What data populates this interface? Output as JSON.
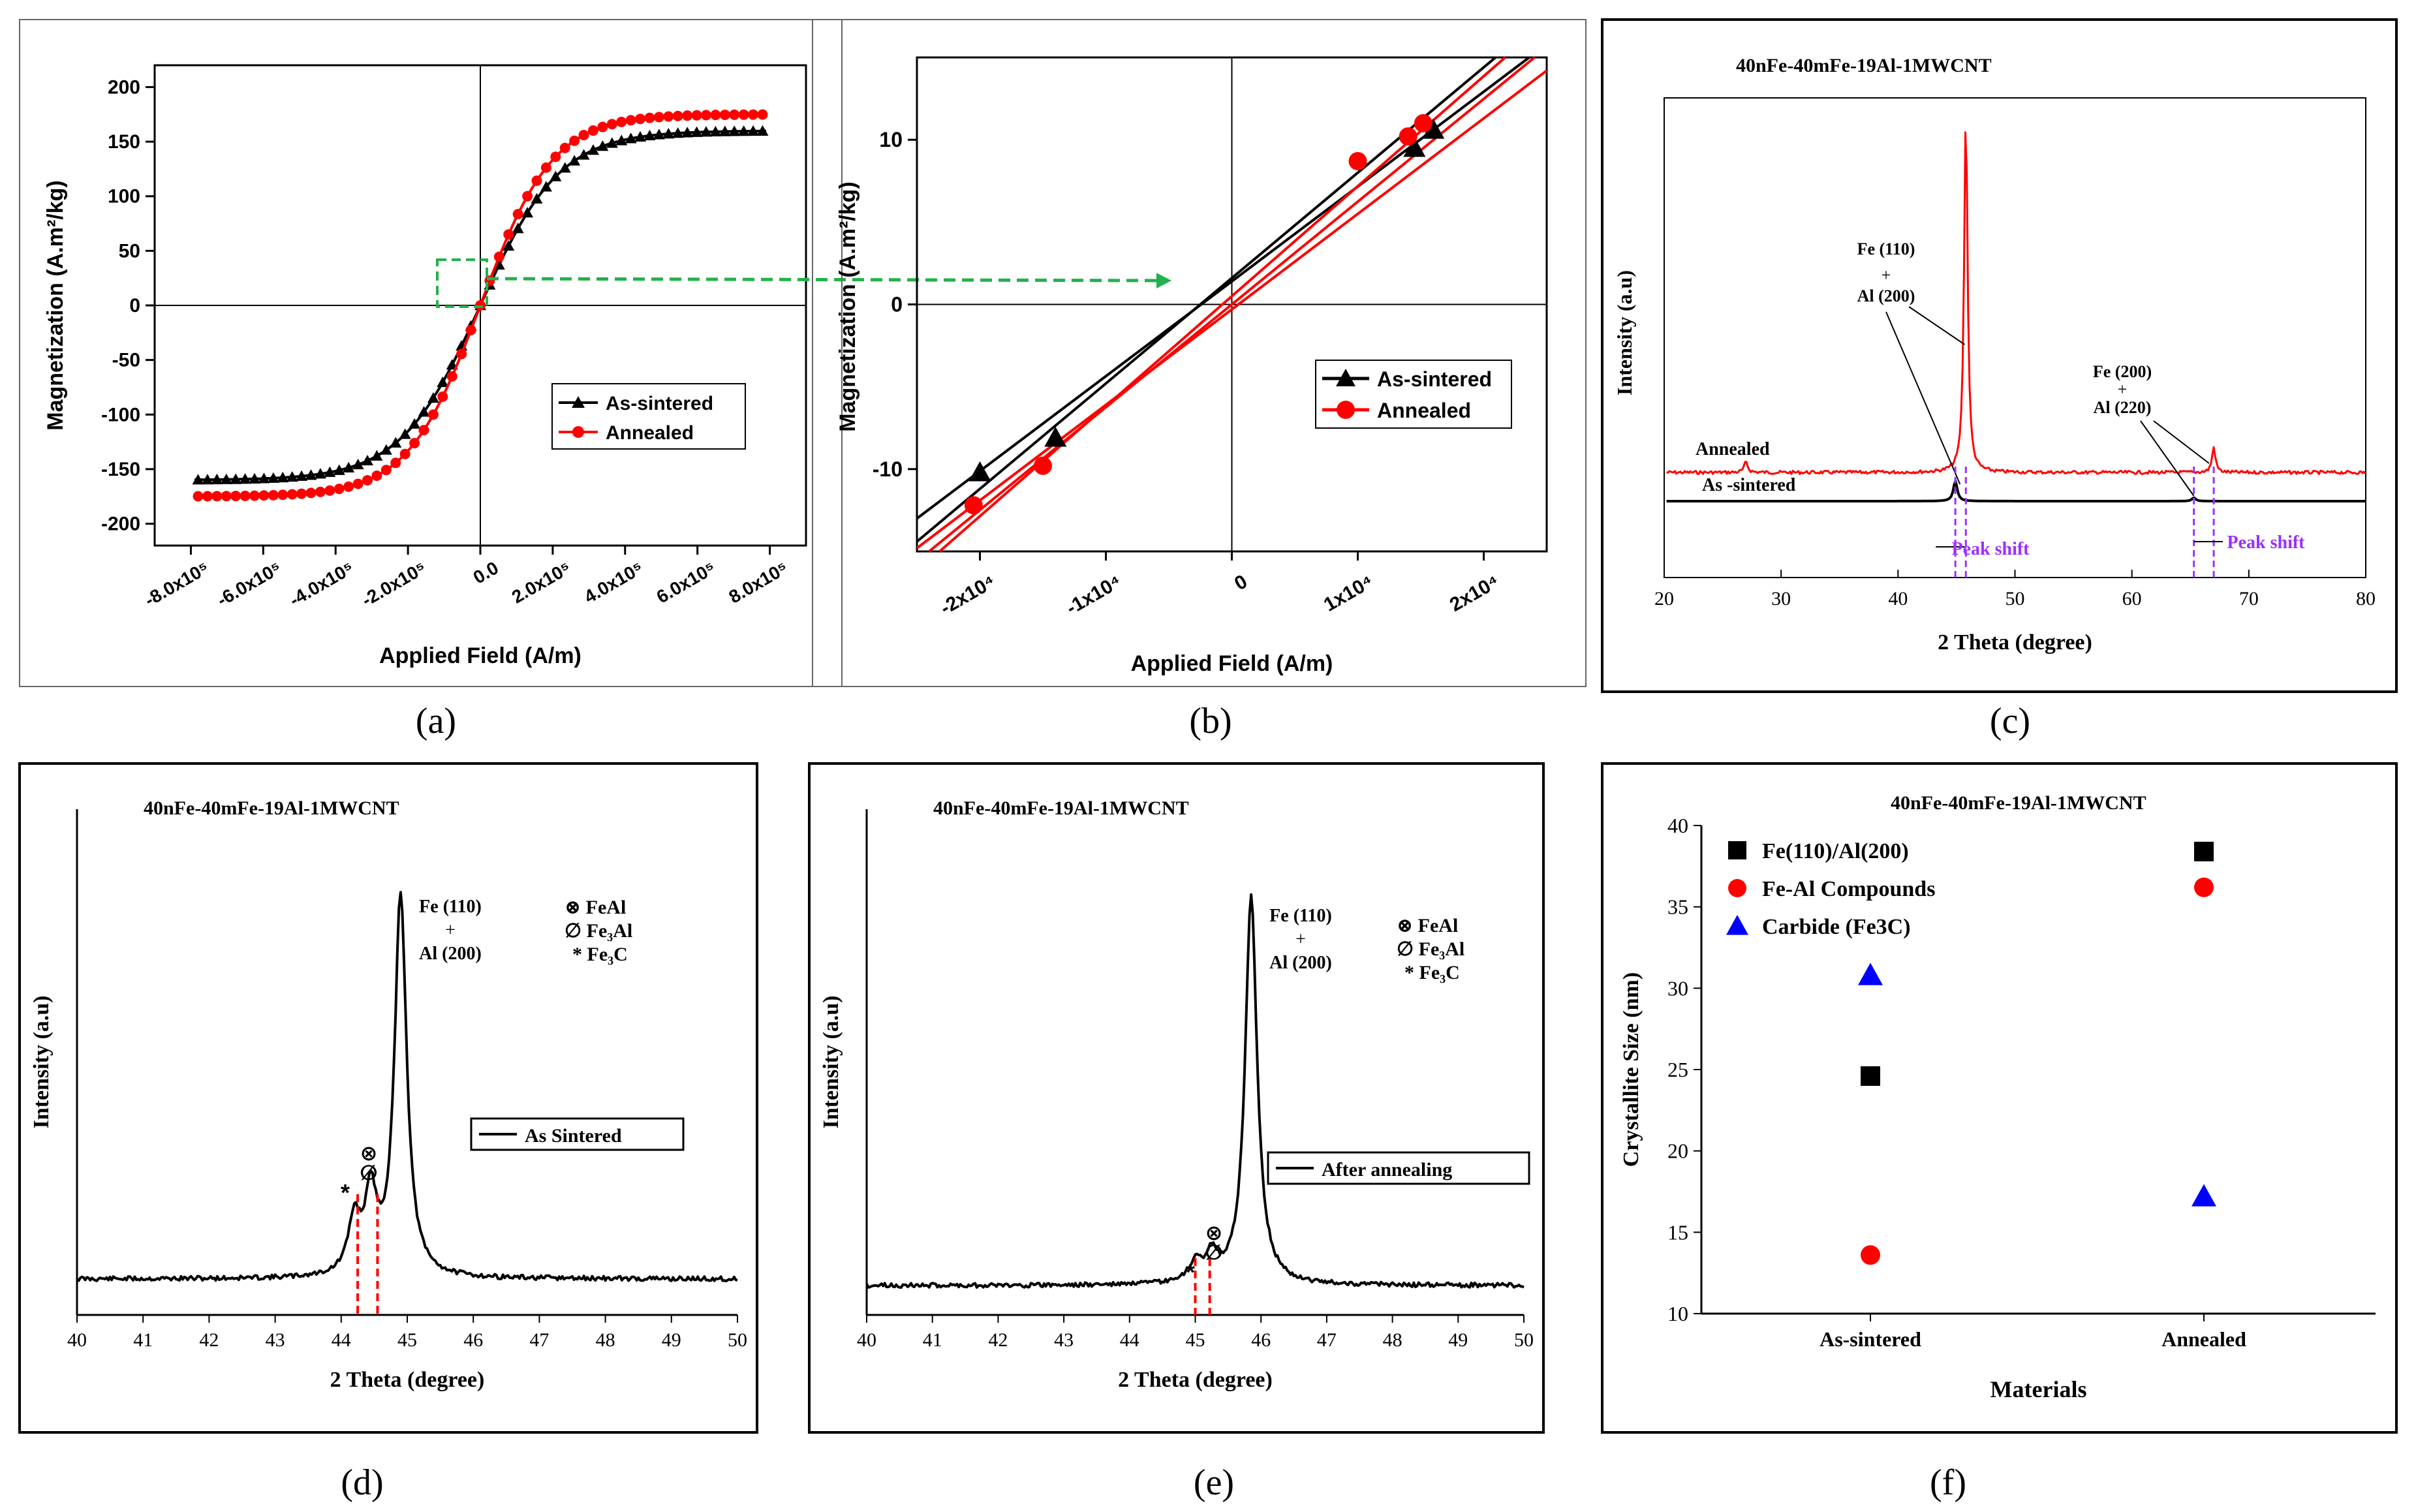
{
  "panel_labels": [
    "(a)",
    "(b)",
    "(c)",
    "(d)",
    "(e)",
    "(f)"
  ],
  "legend_ab": {
    "as_sintered": "As-sintered",
    "annealed": "Annealed"
  },
  "ylabel_mag": "Magnetization (A.m²/kg)",
  "xlabel_field": "Applied Field (A/m)",
  "sample_title": "40nFe-40mFe-19Al-1MWCNT",
  "intensity_label": "Intensity (a.u)",
  "theta_label": "2 Theta (degree)",
  "colors": {
    "black": "#000000",
    "red": "#ff0000",
    "blue": "#0000ff",
    "green": "#22b14c",
    "purple": "#9b30ff"
  },
  "chart_data": [
    {
      "panel": "a",
      "type": "line",
      "title": "",
      "xlabel": "Applied Field (A/m)",
      "ylabel": "Magnetization (A.m²/kg)",
      "xlim": [
        -900000,
        900000
      ],
      "ylim": [
        -220,
        220
      ],
      "xticks": [
        -800000,
        -600000,
        -400000,
        -200000,
        0,
        200000,
        400000,
        600000,
        800000
      ],
      "xtick_labels": [
        "-8.0x10⁵",
        "-6.0x10⁵",
        "-4.0x10⁵",
        "-2.0x10⁵",
        "0.0",
        "2.0x10⁵",
        "4.0x10⁵",
        "6.0x10⁵",
        "8.0x10⁵"
      ],
      "yticks": [
        -200,
        -150,
        -100,
        -50,
        0,
        50,
        100,
        150,
        200
      ],
      "series": [
        {
          "name": "As-sintered",
          "color": "#000000",
          "marker": "triangle",
          "Ms": 160,
          "H0": 220000
        },
        {
          "name": "Annealed",
          "color": "#ff0000",
          "marker": "circle",
          "Ms": 175,
          "H0": 200000
        }
      ],
      "annotation": "dashed green box around origin, arrow pointing to zoomed panel (b)"
    },
    {
      "panel": "b",
      "type": "line",
      "title": "",
      "xlabel": "Applied Field (A/m)",
      "ylabel": "Magnetization (A.m²/kg)",
      "xlim": [
        -25000,
        25000
      ],
      "ylim": [
        -15,
        15
      ],
      "xticks": [
        -20000,
        -10000,
        0,
        10000,
        20000
      ],
      "xtick_labels": [
        "-2x10⁴",
        "-1x10⁴",
        "0",
        "1x10⁴",
        "2x10⁴"
      ],
      "yticks": [
        -10,
        0,
        10
      ],
      "series": [
        {
          "name": "As-sintered",
          "color": "#000000",
          "marker": "triangle",
          "points": [
            [
              -20000,
              -10.2
            ],
            [
              -14000,
              -8.1
            ],
            [
              14500,
              9.5
            ],
            [
              16000,
              10.6
            ]
          ]
        },
        {
          "name": "Annealed",
          "color": "#ff0000",
          "marker": "circle",
          "points": [
            [
              -20500,
              -12.2
            ],
            [
              -15000,
              -9.8
            ],
            [
              10000,
              8.7
            ],
            [
              14000,
              10.2
            ],
            [
              15200,
              11.0
            ]
          ]
        }
      ],
      "legend": [
        "As-sintered",
        "Annealed"
      ]
    },
    {
      "panel": "c",
      "type": "line",
      "title": "40nFe-40mFe-19Al-1MWCNT",
      "xlabel": "2 Theta (degree)",
      "ylabel": "Intensity (a.u)",
      "xlim": [
        20,
        80
      ],
      "xticks": [
        20,
        30,
        40,
        50,
        60,
        70,
        80
      ],
      "series": [
        {
          "name": "Annealed",
          "color": "#ff0000",
          "peaks": [
            [
              45.8,
              1.0
            ],
            [
              67.0,
              0.07
            ],
            [
              27.0,
              0.03
            ]
          ]
        },
        {
          "name": "As -sintered",
          "color": "#000000",
          "peaks": [
            [
              44.9,
              0.06
            ],
            [
              65.3,
              0.01
            ]
          ]
        }
      ],
      "annotations": [
        "Fe (110)",
        "+",
        "Al (200)",
        "Fe (200)",
        "+",
        "Al (220)",
        "Peak shift",
        "Peak shift"
      ]
    },
    {
      "panel": "d",
      "type": "line",
      "title": "40nFe-40mFe-19Al-1MWCNT",
      "xlabel": "2 Theta (degree)",
      "ylabel": "Intensity (a.u)",
      "xlim": [
        40,
        50
      ],
      "xticks": [
        40,
        41,
        42,
        43,
        44,
        45,
        46,
        47,
        48,
        49,
        50
      ],
      "series": [
        {
          "name": "As Sintered",
          "color": "#000000",
          "peaks": [
            [
              44.9,
              1.0
            ],
            [
              44.45,
              0.2
            ],
            [
              44.2,
              0.14
            ]
          ]
        }
      ],
      "annotations": [
        "Fe (110)",
        "+",
        "Al (200)",
        "⊗ FeAl",
        "∅ Fe₃Al",
        "* Fe₃C"
      ]
    },
    {
      "panel": "e",
      "type": "line",
      "title": "40nFe-40mFe-19Al-1MWCNT",
      "xlabel": "2 Theta (degree)",
      "ylabel": "Intensity (a.u)",
      "xlim": [
        40,
        50
      ],
      "xticks": [
        40,
        41,
        42,
        43,
        44,
        45,
        46,
        47,
        48,
        49,
        50
      ],
      "series": [
        {
          "name": "After annealing",
          "color": "#000000",
          "peaks": [
            [
              45.85,
              1.0
            ],
            [
              45.25,
              0.07
            ],
            [
              45.0,
              0.05
            ]
          ]
        }
      ],
      "annotations": [
        "Fe (110)",
        "+",
        "Al (200)",
        "⊗ FeAl",
        "∅ Fe₃Al",
        "* Fe₃C"
      ]
    },
    {
      "panel": "f",
      "type": "scatter",
      "title": "40nFe-40mFe-19Al-1MWCNT",
      "xlabel": "Materials",
      "ylabel": "Crystallite Size (nm)",
      "categories": [
        "As-sintered",
        "Annealed"
      ],
      "ylim": [
        10,
        40
      ],
      "yticks": [
        10,
        15,
        20,
        25,
        30,
        35,
        40
      ],
      "series": [
        {
          "name": "Fe(110)/Al(200)",
          "color": "#000000",
          "marker": "square",
          "values": [
            24.6,
            38.4
          ]
        },
        {
          "name": "Fe-Al Compounds",
          "color": "#ff0000",
          "marker": "circle",
          "values": [
            13.6,
            36.2
          ]
        },
        {
          "name": "Carbide (Fe3C)",
          "color": "#0000ff",
          "marker": "triangle",
          "values": [
            30.8,
            17.2
          ]
        }
      ]
    }
  ]
}
